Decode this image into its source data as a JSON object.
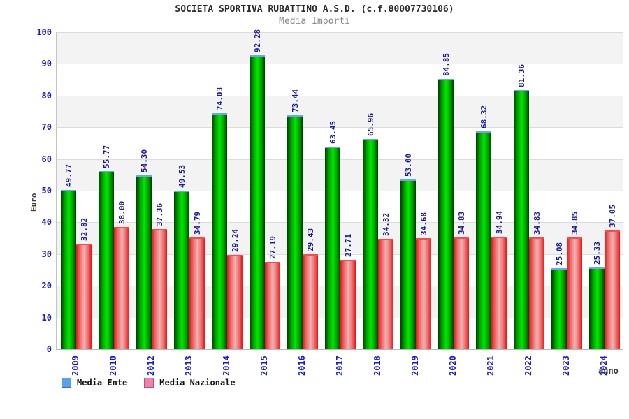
{
  "header": {
    "title": "SOCIETA SPORTIVA RUBATTINO A.S.D. (c.f.80007730106)",
    "subtitle": "Media Importi"
  },
  "chart_data": {
    "type": "bar",
    "title": "SOCIETA SPORTIVA RUBATTINO A.S.D. (c.f.80007730106)",
    "subtitle": "Media Importi",
    "xlabel": "anno",
    "ylabel": "Euro",
    "ylim": [
      0,
      100
    ],
    "yticks": [
      0,
      10,
      20,
      30,
      40,
      50,
      60,
      70,
      80,
      90,
      100
    ],
    "grid": true,
    "alternating_bands": true,
    "legend_position": "bottom-left",
    "value_labels_rotated": true,
    "categories": [
      "2009",
      "2010",
      "2012",
      "2013",
      "2014",
      "2015",
      "2016",
      "2017",
      "2018",
      "2019",
      "2020",
      "2021",
      "2022",
      "2023",
      "2024"
    ],
    "series": [
      {
        "name": "Media Ente",
        "values": [
          49.77,
          55.77,
          54.3,
          49.53,
          74.03,
          92.28,
          73.44,
          63.45,
          65.96,
          53.0,
          84.85,
          68.32,
          81.36,
          25.08,
          25.33
        ],
        "bar_edge_color": "#004000",
        "bar_mid_color": "#00a000",
        "bar_center_color": "#00e800",
        "bar_cap_color": "#6ba7e8",
        "legend_swatch_color": "#5aa0e6"
      },
      {
        "name": "Media Nazionale",
        "values": [
          32.82,
          38.0,
          37.36,
          34.79,
          29.24,
          27.19,
          29.43,
          27.71,
          34.32,
          34.68,
          34.83,
          34.94,
          34.83,
          34.85,
          37.05
        ],
        "bar_edge_color": "#e31414",
        "bar_mid_color": "#ef6a6a",
        "bar_center_color": "#eeb4b4",
        "bar_cap_color": "#fb4a4a",
        "legend_swatch_color": "#ef82ad"
      }
    ],
    "colors": {
      "axis_tick_label": "#1a1acc",
      "value_label": "#1c1c99",
      "gridline": "#dcdcdc",
      "band_gray": "#f3f3f3",
      "title_text": "#2b2b2b",
      "subtitle_text": "#8a8a8a"
    }
  }
}
